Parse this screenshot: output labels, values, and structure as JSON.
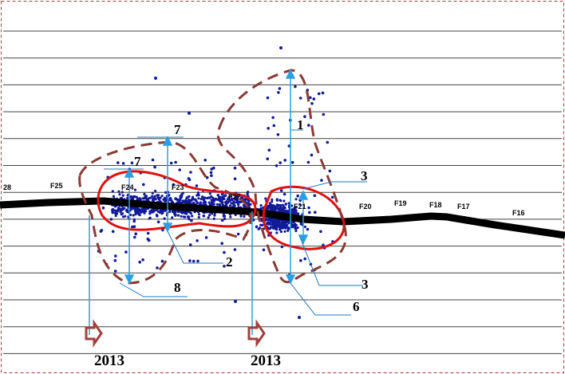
{
  "fault_labels": [
    "28",
    "F25",
    "F24",
    "F23",
    "F22",
    "F21",
    "F20",
    "F19",
    "F18",
    "F17",
    "F16"
  ],
  "annotations": [
    "7",
    "7",
    "1",
    "3",
    "3",
    "2",
    "8",
    "6"
  ],
  "years": [
    "2013",
    "2013"
  ]
}
